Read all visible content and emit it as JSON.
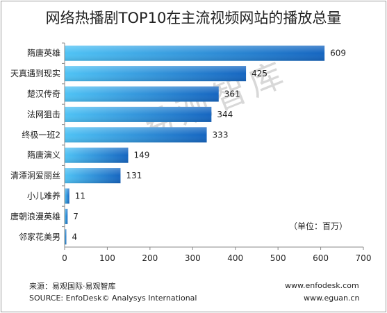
{
  "title": "网络热播剧TOP10在主流视频网站的播放总量",
  "watermark": "易观智库",
  "unit_note": "（单位：百万）",
  "footer": {
    "source_cn": "来源：易观国际·易观智库",
    "source_en": "SOURCE: EnfoDesk© Analysys International",
    "site1": "www.enfodesk.com",
    "site2": "www.eguan.cn"
  },
  "colors": {
    "bar_start": "#4fc3f5",
    "bar_end": "#1565c0",
    "axis": "#888888"
  },
  "chart_data": {
    "type": "bar",
    "orientation": "horizontal",
    "title": "网络热播剧TOP10在主流视频网站的播放总量",
    "categories": [
      "隋唐英雄",
      "天真遇到现实",
      "楚汉传奇",
      "法网狙击",
      "终极一班2",
      "隋唐演义",
      "清潭洞爱丽丝",
      "小儿难养",
      "唐朝浪漫英雄",
      "邻家花美男"
    ],
    "values": [
      609,
      425,
      361,
      344,
      333,
      149,
      131,
      11,
      7,
      4
    ],
    "xlim": [
      0,
      700
    ],
    "xticks": [
      0,
      100,
      200,
      300,
      400,
      500,
      600,
      700
    ],
    "unit": "百万",
    "grid": false,
    "legend": "none"
  }
}
